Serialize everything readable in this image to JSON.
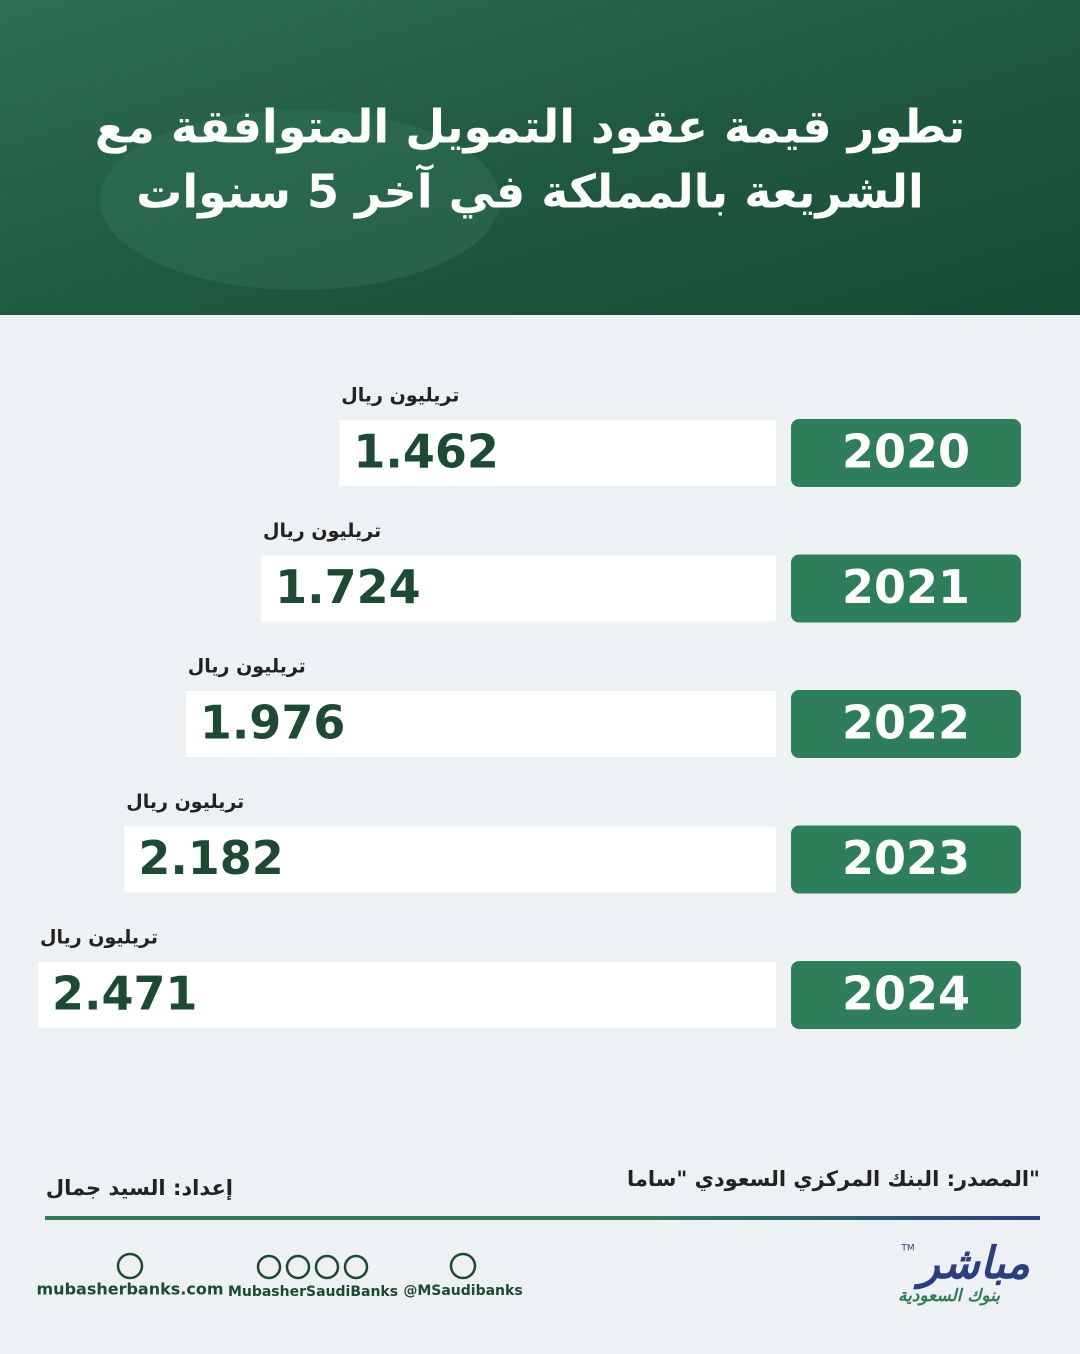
{
  "chart_data": {
    "type": "bar",
    "orientation": "horizontal",
    "title": [
      "تطور قيمة عقود التمويل المتوافقة مع",
      "الشريعة بالمملكة في آخر 5 سنوات"
    ],
    "unit": "تريليون ريال",
    "categories": [
      "2020",
      "2021",
      "2022",
      "2023",
      "2024"
    ],
    "values": [
      1.462,
      1.724,
      1.976,
      2.182,
      2.471
    ],
    "color": "#2e7d5b",
    "value_box_color": "#ffffff",
    "value_text_color": "#1d4a35"
  },
  "footer": {
    "source": "المصدر: البنك المركزي السعودي \"ساما\"",
    "author": "إعداد: السيد جمال",
    "website": "mubasherbanks.com",
    "social": "MubasherSaudiBanks",
    "twitter": "@MSaudibanks",
    "logo": "مباشر",
    "logo_tm": "TM",
    "logo_sub": "بنوك السعودية"
  }
}
